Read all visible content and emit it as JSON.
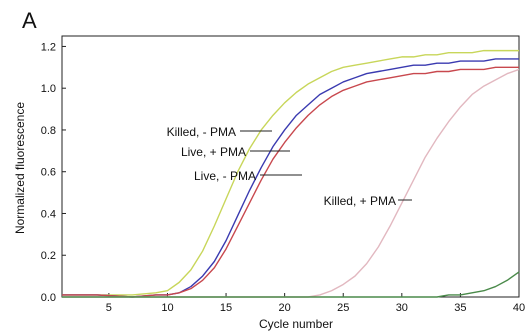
{
  "panel_label": "A",
  "chart_data": {
    "type": "line",
    "title": "",
    "xlabel": "Cycle number",
    "ylabel": "Normalized fluorescence",
    "xlim": [
      1,
      40
    ],
    "ylim": [
      0,
      1.25
    ],
    "xticks": [
      5,
      10,
      15,
      20,
      25,
      30,
      35,
      40
    ],
    "yticks": [
      0.0,
      0.2,
      0.4,
      0.6,
      0.8,
      1.0,
      1.2
    ],
    "ytick_labels": [
      "0.0",
      "0.2",
      "0.4",
      "0.6",
      "0.8",
      "1.0",
      "1.2"
    ],
    "grid": false,
    "x": [
      1,
      4,
      7,
      9,
      10,
      11,
      12,
      13,
      14,
      15,
      16,
      17,
      18,
      19,
      20,
      21,
      22,
      23,
      24,
      25,
      26,
      27,
      28,
      29,
      30,
      31,
      32,
      33,
      34,
      35,
      36,
      37,
      38,
      39,
      40
    ],
    "series": [
      {
        "color": "#c8d65a",
        "values": [
          0.01,
          0.01,
          0.01,
          0.02,
          0.03,
          0.07,
          0.13,
          0.22,
          0.34,
          0.47,
          0.6,
          0.71,
          0.8,
          0.87,
          0.93,
          0.98,
          1.02,
          1.05,
          1.08,
          1.1,
          1.11,
          1.12,
          1.13,
          1.14,
          1.15,
          1.15,
          1.16,
          1.16,
          1.17,
          1.17,
          1.17,
          1.18,
          1.18,
          1.18,
          1.18
        ]
      },
      {
        "color": "#3a3ab0",
        "values": [
          0.01,
          0.01,
          0.0,
          0.01,
          0.01,
          0.02,
          0.05,
          0.1,
          0.17,
          0.27,
          0.39,
          0.51,
          0.62,
          0.72,
          0.8,
          0.87,
          0.92,
          0.97,
          1.0,
          1.03,
          1.05,
          1.07,
          1.08,
          1.09,
          1.1,
          1.11,
          1.11,
          1.12,
          1.12,
          1.13,
          1.13,
          1.13,
          1.14,
          1.14,
          1.14
        ]
      },
      {
        "color": "#c8484e",
        "values": [
          0.01,
          0.01,
          0.0,
          0.01,
          0.01,
          0.02,
          0.04,
          0.08,
          0.14,
          0.23,
          0.34,
          0.45,
          0.56,
          0.66,
          0.74,
          0.81,
          0.87,
          0.92,
          0.96,
          0.99,
          1.01,
          1.03,
          1.04,
          1.05,
          1.06,
          1.07,
          1.07,
          1.08,
          1.08,
          1.09,
          1.09,
          1.09,
          1.1,
          1.1,
          1.1
        ]
      },
      {
        "color": "#e2b8c0",
        "values": [
          0.0,
          0.0,
          0.0,
          0.0,
          0.0,
          0.0,
          0.0,
          0.0,
          0.0,
          0.0,
          0.0,
          0.0,
          0.0,
          0.0,
          0.0,
          0.0,
          0.0,
          0.01,
          0.03,
          0.06,
          0.1,
          0.16,
          0.24,
          0.34,
          0.45,
          0.56,
          0.67,
          0.76,
          0.84,
          0.91,
          0.97,
          1.01,
          1.04,
          1.07,
          1.09
        ]
      },
      {
        "color": "#4a8a4a",
        "values": [
          0.0,
          0.0,
          0.0,
          0.0,
          0.0,
          0.0,
          0.0,
          0.0,
          0.0,
          0.0,
          0.0,
          0.0,
          0.0,
          0.0,
          0.0,
          0.0,
          0.0,
          0.0,
          0.0,
          0.0,
          0.0,
          0.0,
          0.0,
          0.0,
          0.0,
          0.0,
          0.0,
          0.0,
          0.01,
          0.01,
          0.02,
          0.03,
          0.05,
          0.08,
          0.12
        ]
      }
    ],
    "annotations": [
      {
        "text": "Killed, - PMA",
        "target_series": 0
      },
      {
        "text": "Live, + PMA",
        "target_series": 1
      },
      {
        "text": "Live, - PMA",
        "target_series": 2
      },
      {
        "text": "Killed, + PMA",
        "target_series": 3
      }
    ]
  }
}
